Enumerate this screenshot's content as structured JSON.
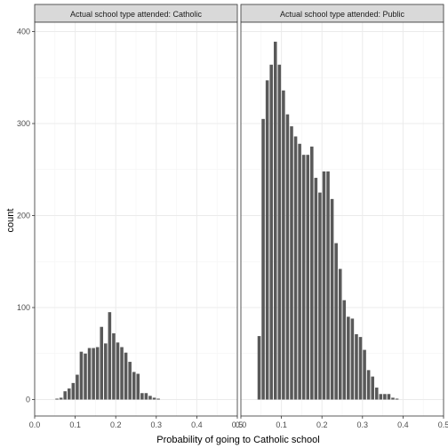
{
  "chart_data": {
    "type": "bar",
    "xlabel": "Probability of going to Catholic school",
    "ylabel": "count",
    "xlim": [
      0.0,
      0.5
    ],
    "ylim": [
      0,
      400
    ],
    "x_ticks": [
      "0.0",
      "0.1",
      "0.2",
      "0.3",
      "0.4",
      "0.5"
    ],
    "y_ticks": [
      "0",
      "100",
      "200",
      "300",
      "400"
    ],
    "bin_width": 0.01,
    "grid": true,
    "bar_color": "#595959",
    "panels": [
      {
        "name": "Actual school type attended: Catholic",
        "bin_centers": [
          0.055,
          0.065,
          0.075,
          0.085,
          0.095,
          0.105,
          0.115,
          0.125,
          0.135,
          0.145,
          0.155,
          0.165,
          0.175,
          0.185,
          0.195,
          0.205,
          0.215,
          0.225,
          0.235,
          0.245,
          0.255,
          0.265,
          0.275,
          0.285,
          0.295,
          0.305,
          0.315,
          0.325,
          0.335,
          0.345,
          0.355,
          0.365,
          0.375,
          0.385,
          0.395,
          0.405
        ],
        "counts": [
          1,
          2,
          9,
          12,
          18,
          27,
          52,
          50,
          56,
          56,
          57,
          79,
          61,
          95,
          72,
          62,
          57,
          51,
          41,
          30,
          28,
          7,
          7,
          4,
          2,
          1,
          0,
          0,
          0,
          0,
          0,
          0,
          0,
          0,
          0,
          0
        ]
      },
      {
        "name": "Actual school type attended: Public",
        "bin_centers": [
          0.045,
          0.055,
          0.065,
          0.075,
          0.085,
          0.095,
          0.105,
          0.115,
          0.125,
          0.135,
          0.145,
          0.155,
          0.165,
          0.175,
          0.185,
          0.195,
          0.205,
          0.215,
          0.225,
          0.235,
          0.245,
          0.255,
          0.265,
          0.275,
          0.285,
          0.295,
          0.305,
          0.315,
          0.325,
          0.335,
          0.345,
          0.355,
          0.365,
          0.375,
          0.385,
          0.395,
          0.405,
          0.415,
          0.425,
          0.435,
          0.445
        ],
        "counts": [
          69,
          305,
          347,
          364,
          389,
          364,
          336,
          310,
          297,
          286,
          278,
          266,
          266,
          275,
          241,
          225,
          248,
          248,
          218,
          170,
          142,
          108,
          90,
          88,
          71,
          68,
          54,
          32,
          25,
          13,
          6,
          6,
          6,
          2,
          1,
          0,
          0,
          0,
          0,
          0,
          0
        ]
      }
    ]
  }
}
